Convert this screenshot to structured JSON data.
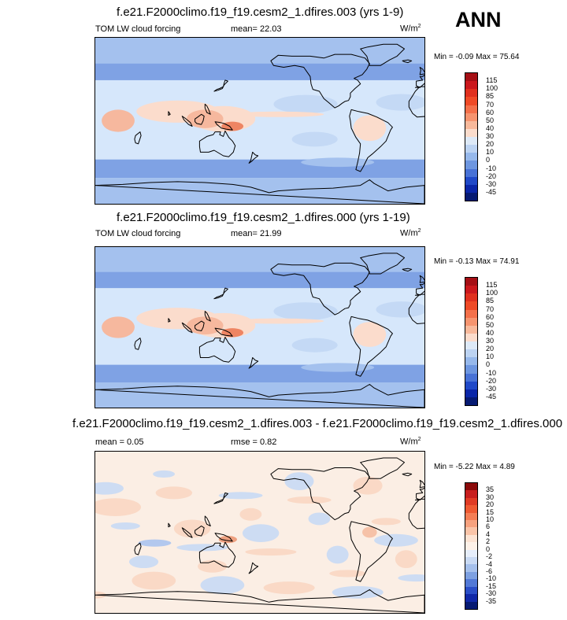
{
  "season": "ANN",
  "panels": [
    {
      "title": "f.e21.F2000climo.f19_f19.cesm2_1.dfires.003 (yrs 1-9)",
      "left_label": "TOM LW cloud forcing",
      "center_label": "mean=  22.03",
      "units": "W/m",
      "units_sup": "2",
      "minmax": "Min =  -0.09 Max =  75.64",
      "colorbar": {
        "levels": [
          "115",
          "100",
          "85",
          "70",
          "60",
          "50",
          "40",
          "30",
          "20",
          "10",
          "0",
          "-10",
          "-20",
          "-30",
          "-45"
        ],
        "colors": [
          "#a50f15",
          "#cb181d",
          "#e0301e",
          "#ef4a26",
          "#f4704a",
          "#f6946f",
          "#f8b99b",
          "#fbdccc",
          "#dde9f7",
          "#bcd3f2",
          "#96b8eb",
          "#6d96e0",
          "#4872d6",
          "#2049c8",
          "#0a26a8",
          "#061a72"
        ]
      },
      "palette": {
        "base": "#d6e7fb",
        "light": "#c4d9f5",
        "mid": "#a4c1ee",
        "deep": "#7fa2e4",
        "pink": "#fbdccc",
        "warm": "#f6b89e",
        "hot": "#ee8563"
      }
    },
    {
      "title": "f.e21.F2000climo.f19_f19.cesm2_1.dfires.000 (yrs 1-19)",
      "left_label": "TOM LW cloud forcing",
      "center_label": "mean=  21.99",
      "units": "W/m",
      "units_sup": "2",
      "minmax": "Min =  -0.13 Max =  74.91",
      "colorbar": {
        "levels": [
          "115",
          "100",
          "85",
          "70",
          "60",
          "50",
          "40",
          "30",
          "20",
          "10",
          "0",
          "-10",
          "-20",
          "-30",
          "-45"
        ],
        "colors": [
          "#a50f15",
          "#cb181d",
          "#e0301e",
          "#ef4a26",
          "#f4704a",
          "#f6946f",
          "#f8b99b",
          "#fbdccc",
          "#dde9f7",
          "#bcd3f2",
          "#96b8eb",
          "#6d96e0",
          "#4872d6",
          "#2049c8",
          "#0a26a8",
          "#061a72"
        ]
      },
      "palette": {
        "base": "#d6e7fb",
        "light": "#c4d9f5",
        "mid": "#a4c1ee",
        "deep": "#7fa2e4",
        "pink": "#fbdccc",
        "warm": "#f6b89e",
        "hot": "#ee8563"
      }
    },
    {
      "title": "f.e21.F2000climo.f19_f19.cesm2_1.dfires.003 - f.e21.F2000climo.f19_f19.cesm2_1.dfires.000",
      "left_label": "mean =   0.05",
      "center_label": "rmse =   0.82",
      "units": "W/m",
      "units_sup": "2",
      "minmax": "Min =  -5.22 Max =   4.89",
      "colorbar": {
        "levels": [
          "35",
          "30",
          "20",
          "15",
          "10",
          "6",
          "4",
          "2",
          "0",
          "-2",
          "-4",
          "-6",
          "-10",
          "-15",
          "-30",
          "-35"
        ],
        "colors": [
          "#8b0a0a",
          "#c81e1e",
          "#e03b24",
          "#ef5a32",
          "#f57e55",
          "#f7a27f",
          "#fac4a8",
          "#fce3d3",
          "#fdf1e8",
          "#e6eefb",
          "#c9daf4",
          "#a5c0ec",
          "#7da0e1",
          "#5279d6",
          "#2a4ec7",
          "#1028a8",
          "#061a72"
        ]
      },
      "palette": {
        "base": "#fbeee4",
        "light": "#e8eef9",
        "mid": "#cddcf3",
        "deep": "#b3c8ee",
        "pink": "#fad9c6",
        "warm": "#f6c2a8",
        "hot": "#eea07f"
      }
    }
  ]
}
